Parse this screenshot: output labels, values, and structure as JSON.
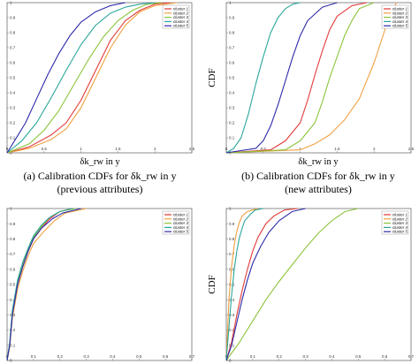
{
  "legend_labels": [
    "cluster 1",
    "cluster 2",
    "cluster 3",
    "cluster 4",
    "cluster 5"
  ],
  "colors": [
    "#e23a3a",
    "#f0a040",
    "#8cc43a",
    "#2aa79b",
    "#2c2aa8"
  ],
  "chart_data": [
    {
      "type": "line",
      "xlabel": "δk_rw in y",
      "ylabel": "",
      "caption_line1": "(a) Calibration CDFs for δk_rw in y",
      "caption_line2": "(previous attributes)",
      "xlim": [
        0,
        2.5
      ],
      "ylim": [
        0,
        1
      ],
      "xticks": [
        "0",
        "0.5",
        "1",
        "1.5",
        "2",
        "2.5"
      ],
      "yticks": [
        "0",
        "0.1",
        "0.2",
        "0.3",
        "0.4",
        "0.5",
        "0.6",
        "0.7",
        "0.8",
        "0.9",
        "1"
      ],
      "legend": "top-right",
      "series": [
        {
          "name": "cluster 1",
          "x": [
            0,
            0.3,
            0.6,
            0.8,
            1.0,
            1.2,
            1.4,
            1.6,
            1.8,
            2.0,
            2.2
          ],
          "y": [
            0,
            0.04,
            0.12,
            0.2,
            0.35,
            0.55,
            0.75,
            0.88,
            0.95,
            0.99,
            1
          ]
        },
        {
          "name": "cluster 2",
          "x": [
            0,
            0.3,
            0.6,
            0.8,
            1.0,
            1.2,
            1.4,
            1.6,
            1.8,
            2.0,
            2.3
          ],
          "y": [
            0,
            0.03,
            0.09,
            0.16,
            0.3,
            0.5,
            0.7,
            0.85,
            0.94,
            0.98,
            1
          ]
        },
        {
          "name": "cluster 3",
          "x": [
            0,
            0.3,
            0.5,
            0.7,
            0.9,
            1.1,
            1.3,
            1.5,
            1.7,
            1.9,
            2.1
          ],
          "y": [
            0,
            0.06,
            0.15,
            0.28,
            0.45,
            0.62,
            0.77,
            0.88,
            0.95,
            0.99,
            1
          ]
        },
        {
          "name": "cluster 4",
          "x": [
            0,
            0.2,
            0.4,
            0.6,
            0.8,
            1.0,
            1.2,
            1.4,
            1.6,
            1.8,
            2.0
          ],
          "y": [
            0,
            0.08,
            0.2,
            0.37,
            0.55,
            0.72,
            0.85,
            0.93,
            0.97,
            0.99,
            1
          ]
        },
        {
          "name": "cluster 5",
          "x": [
            0,
            0.1,
            0.25,
            0.4,
            0.55,
            0.7,
            0.85,
            1.0,
            1.2,
            1.4,
            1.6
          ],
          "y": [
            0,
            0.08,
            0.2,
            0.36,
            0.52,
            0.66,
            0.78,
            0.87,
            0.94,
            0.98,
            1
          ]
        }
      ]
    },
    {
      "type": "line",
      "xlabel": "δk_rw in y",
      "ylabel": "CDF",
      "caption_line1": "(b) Calibration CDFs for δk_rw in y",
      "caption_line2": "(new attributes)",
      "xlim": [
        0,
        2.5
      ],
      "ylim": [
        0,
        1
      ],
      "xticks": [
        "0",
        "0.5",
        "1",
        "1.5",
        "2",
        "2.5"
      ],
      "yticks": [
        "0",
        "0.1",
        "0.2",
        "0.3",
        "0.4",
        "0.5",
        "0.6",
        "0.7",
        "0.8",
        "0.9",
        "1"
      ],
      "legend": "top-right",
      "series": [
        {
          "name": "cluster 1",
          "x": [
            0,
            0.6,
            0.8,
            1.0,
            1.1,
            1.2,
            1.3,
            1.4,
            1.5,
            1.7,
            1.9
          ],
          "y": [
            0,
            0.02,
            0.08,
            0.2,
            0.35,
            0.52,
            0.68,
            0.82,
            0.91,
            0.98,
            1
          ]
        },
        {
          "name": "cluster 2",
          "x": [
            0,
            1.0,
            1.2,
            1.4,
            1.6,
            1.8,
            1.9,
            2.0,
            2.1,
            2.2,
            2.3
          ],
          "y": [
            0,
            0.02,
            0.06,
            0.12,
            0.22,
            0.36,
            0.48,
            0.6,
            0.75,
            0.9,
            1
          ]
        },
        {
          "name": "cluster 3",
          "x": [
            0,
            0.8,
            1.0,
            1.2,
            1.3,
            1.4,
            1.5,
            1.6,
            1.7,
            1.8,
            2.0
          ],
          "y": [
            0,
            0.02,
            0.08,
            0.2,
            0.34,
            0.5,
            0.64,
            0.78,
            0.88,
            0.96,
            1
          ]
        },
        {
          "name": "cluster 4",
          "x": [
            0,
            0.1,
            0.2,
            0.3,
            0.4,
            0.5,
            0.6,
            0.7,
            0.8,
            0.9,
            1.0
          ],
          "y": [
            0,
            0.03,
            0.1,
            0.26,
            0.46,
            0.64,
            0.8,
            0.9,
            0.96,
            0.99,
            1
          ]
        },
        {
          "name": "cluster 5",
          "x": [
            0,
            0.4,
            0.5,
            0.6,
            0.7,
            0.8,
            0.9,
            1.0,
            1.1,
            1.3,
            1.5
          ],
          "y": [
            0,
            0.03,
            0.08,
            0.18,
            0.32,
            0.48,
            0.64,
            0.78,
            0.88,
            0.97,
            1
          ]
        }
      ]
    },
    {
      "type": "line",
      "xlabel": "",
      "ylabel": "",
      "xlim": [
        0,
        0.7
      ],
      "ylim": [
        0,
        1
      ],
      "xticks": [
        "0",
        "0.1",
        "0.2",
        "0.3",
        "0.4",
        "0.5",
        "0.6",
        "0.7"
      ],
      "yticks": [
        "0",
        "0.1",
        "0.2",
        "0.3",
        "0.4",
        "0.5",
        "0.6",
        "0.7",
        "0.8",
        "0.9",
        "1"
      ],
      "legend": "top-right",
      "series": [
        {
          "name": "cluster 1",
          "x": [
            0,
            0.01,
            0.02,
            0.04,
            0.06,
            0.08,
            0.1,
            0.13,
            0.16,
            0.2,
            0.25
          ],
          "y": [
            0,
            0.1,
            0.3,
            0.5,
            0.62,
            0.72,
            0.8,
            0.87,
            0.93,
            0.98,
            1
          ]
        },
        {
          "name": "cluster 2",
          "x": [
            0,
            0.01,
            0.02,
            0.04,
            0.06,
            0.08,
            0.1,
            0.14,
            0.18,
            0.22,
            0.3
          ],
          "y": [
            0,
            0.09,
            0.28,
            0.47,
            0.59,
            0.69,
            0.77,
            0.85,
            0.92,
            0.97,
            1
          ]
        },
        {
          "name": "cluster 3",
          "x": [
            0,
            0.01,
            0.02,
            0.04,
            0.06,
            0.08,
            0.1,
            0.13,
            0.16,
            0.2,
            0.26
          ],
          "y": [
            0,
            0.11,
            0.32,
            0.52,
            0.64,
            0.73,
            0.81,
            0.88,
            0.94,
            0.98,
            1
          ]
        },
        {
          "name": "cluster 4",
          "x": [
            0,
            0.01,
            0.02,
            0.04,
            0.06,
            0.08,
            0.1,
            0.13,
            0.16,
            0.2,
            0.25
          ],
          "y": [
            0,
            0.12,
            0.33,
            0.53,
            0.65,
            0.74,
            0.82,
            0.89,
            0.94,
            0.98,
            1
          ]
        },
        {
          "name": "cluster 5",
          "x": [
            0,
            0.01,
            0.02,
            0.04,
            0.06,
            0.08,
            0.1,
            0.13,
            0.17,
            0.21,
            0.28
          ],
          "y": [
            0,
            0.1,
            0.3,
            0.5,
            0.62,
            0.72,
            0.8,
            0.87,
            0.93,
            0.97,
            1
          ]
        }
      ]
    },
    {
      "type": "line",
      "xlabel": "",
      "ylabel": "CDF",
      "xlim": [
        0,
        0.7
      ],
      "ylim": [
        0,
        1
      ],
      "xticks": [
        "0",
        "0.1",
        "0.2",
        "0.3",
        "0.4",
        "0.5",
        "0.6",
        "0.7"
      ],
      "yticks": [
        "0",
        "0.1",
        "0.2",
        "0.3",
        "0.4",
        "0.5",
        "0.6",
        "0.7",
        "0.8",
        "0.9",
        "1"
      ],
      "legend": "top-right",
      "series": [
        {
          "name": "cluster 1",
          "x": [
            0,
            0.02,
            0.04,
            0.06,
            0.08,
            0.1,
            0.12,
            0.15,
            0.18,
            0.22,
            0.27
          ],
          "y": [
            0,
            0.12,
            0.3,
            0.46,
            0.6,
            0.72,
            0.81,
            0.9,
            0.95,
            0.99,
            1
          ]
        },
        {
          "name": "cluster 2",
          "x": [
            0,
            0.005,
            0.01,
            0.02,
            0.03,
            0.04,
            0.05,
            0.06,
            0.08,
            0.1,
            0.12
          ],
          "y": [
            0,
            0.2,
            0.4,
            0.62,
            0.76,
            0.85,
            0.91,
            0.95,
            0.98,
            0.99,
            1
          ]
        },
        {
          "name": "cluster 3",
          "x": [
            0,
            0.05,
            0.1,
            0.15,
            0.2,
            0.25,
            0.3,
            0.35,
            0.4,
            0.45,
            0.5
          ],
          "y": [
            0,
            0.12,
            0.26,
            0.4,
            0.52,
            0.63,
            0.74,
            0.84,
            0.92,
            0.98,
            1
          ]
        },
        {
          "name": "cluster 4",
          "x": [
            0,
            0.01,
            0.02,
            0.03,
            0.04,
            0.05,
            0.06,
            0.07,
            0.09,
            0.11,
            0.14
          ],
          "y": [
            0,
            0.22,
            0.43,
            0.6,
            0.72,
            0.81,
            0.87,
            0.92,
            0.96,
            0.99,
            1
          ]
        },
        {
          "name": "cluster 5",
          "x": [
            0,
            0.02,
            0.04,
            0.06,
            0.08,
            0.1,
            0.13,
            0.16,
            0.2,
            0.25,
            0.3
          ],
          "y": [
            0,
            0.1,
            0.25,
            0.4,
            0.53,
            0.64,
            0.75,
            0.84,
            0.92,
            0.98,
            1
          ]
        }
      ]
    }
  ]
}
